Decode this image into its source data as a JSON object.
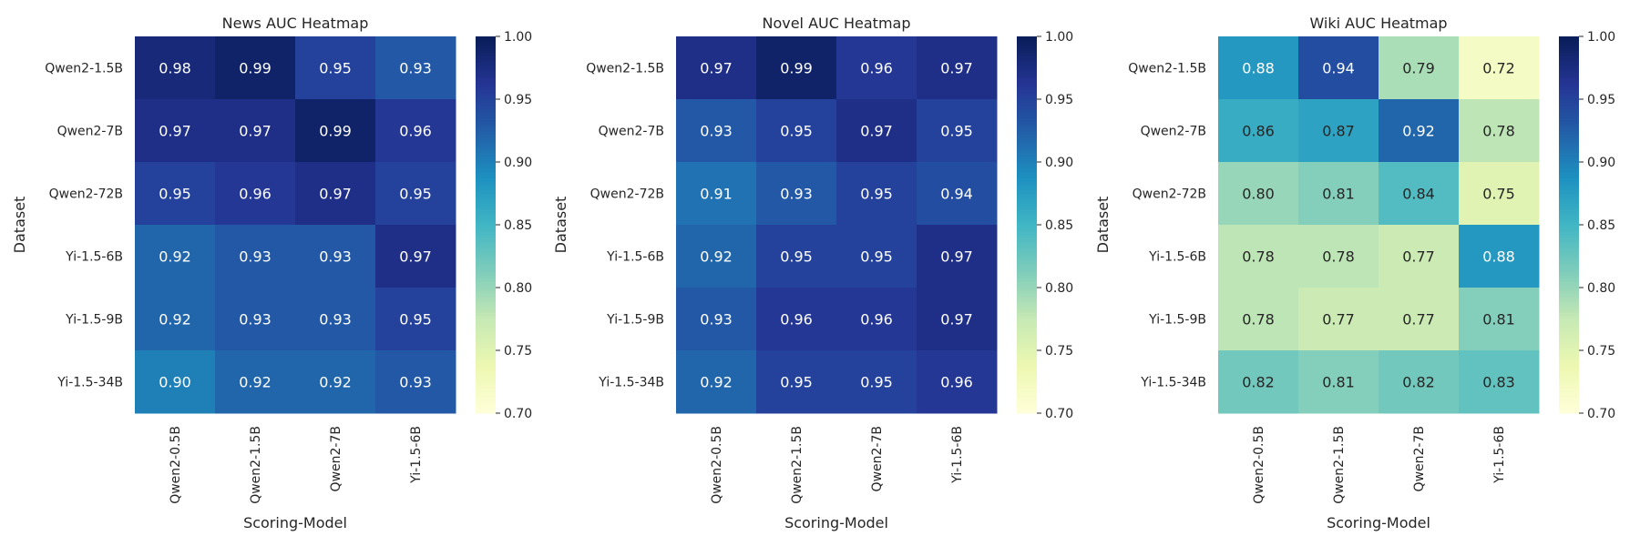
{
  "chart_data": [
    {
      "type": "heatmap",
      "title": "News AUC Heatmap",
      "xlabel": "Scoring-Model",
      "ylabel": "Dataset",
      "x_categories": [
        "Qwen2-0.5B",
        "Qwen2-1.5B",
        "Qwen2-7B",
        "Yi-1.5-6B"
      ],
      "y_categories": [
        "Qwen2-1.5B",
        "Qwen2-7B",
        "Qwen2-72B",
        "Yi-1.5-6B",
        "Yi-1.5-9B",
        "Yi-1.5-34B"
      ],
      "values": [
        [
          0.98,
          0.99,
          0.95,
          0.93
        ],
        [
          0.97,
          0.97,
          0.99,
          0.96
        ],
        [
          0.95,
          0.96,
          0.97,
          0.95
        ],
        [
          0.92,
          0.93,
          0.93,
          0.97
        ],
        [
          0.92,
          0.93,
          0.93,
          0.95
        ],
        [
          0.9,
          0.92,
          0.92,
          0.93
        ]
      ],
      "colorbar": {
        "min": 0.7,
        "max": 1.0,
        "ticks": [
          "0.70",
          "0.75",
          "0.80",
          "0.85",
          "0.90",
          "0.95",
          "1.00"
        ]
      }
    },
    {
      "type": "heatmap",
      "title": "Novel AUC Heatmap",
      "xlabel": "Scoring-Model",
      "ylabel": "Dataset",
      "x_categories": [
        "Qwen2-0.5B",
        "Qwen2-1.5B",
        "Qwen2-7B",
        "Yi-1.5-6B"
      ],
      "y_categories": [
        "Qwen2-1.5B",
        "Qwen2-7B",
        "Qwen2-72B",
        "Yi-1.5-6B",
        "Yi-1.5-9B",
        "Yi-1.5-34B"
      ],
      "values": [
        [
          0.97,
          0.99,
          0.96,
          0.97
        ],
        [
          0.93,
          0.95,
          0.97,
          0.95
        ],
        [
          0.91,
          0.93,
          0.95,
          0.94
        ],
        [
          0.92,
          0.95,
          0.95,
          0.97
        ],
        [
          0.93,
          0.96,
          0.96,
          0.97
        ],
        [
          0.92,
          0.95,
          0.95,
          0.96
        ]
      ],
      "colorbar": {
        "min": 0.7,
        "max": 1.0,
        "ticks": [
          "0.70",
          "0.75",
          "0.80",
          "0.85",
          "0.90",
          "0.95",
          "1.00"
        ]
      }
    },
    {
      "type": "heatmap",
      "title": "Wiki AUC Heatmap",
      "xlabel": "Scoring-Model",
      "ylabel": "Dataset",
      "x_categories": [
        "Qwen2-0.5B",
        "Qwen2-1.5B",
        "Qwen2-7B",
        "Yi-1.5-6B"
      ],
      "y_categories": [
        "Qwen2-1.5B",
        "Qwen2-7B",
        "Qwen2-72B",
        "Yi-1.5-6B",
        "Yi-1.5-9B",
        "Yi-1.5-34B"
      ],
      "values": [
        [
          0.88,
          0.94,
          0.79,
          0.72
        ],
        [
          0.86,
          0.87,
          0.92,
          0.78
        ],
        [
          0.8,
          0.81,
          0.84,
          0.75
        ],
        [
          0.78,
          0.78,
          0.77,
          0.88
        ],
        [
          0.78,
          0.77,
          0.77,
          0.81
        ],
        [
          0.82,
          0.81,
          0.82,
          0.83
        ]
      ],
      "colorbar": {
        "min": 0.7,
        "max": 1.0,
        "ticks": [
          "0.70",
          "0.75",
          "0.80",
          "0.85",
          "0.90",
          "0.95",
          "1.00"
        ]
      }
    }
  ],
  "colormap": {
    "name": "YlGnBu",
    "stops": [
      "#ffffd9",
      "#edf8b1",
      "#c7e9b4",
      "#7fcdbb",
      "#41b6c4",
      "#1d91c0",
      "#225ea8",
      "#253494",
      "#081d58"
    ]
  }
}
